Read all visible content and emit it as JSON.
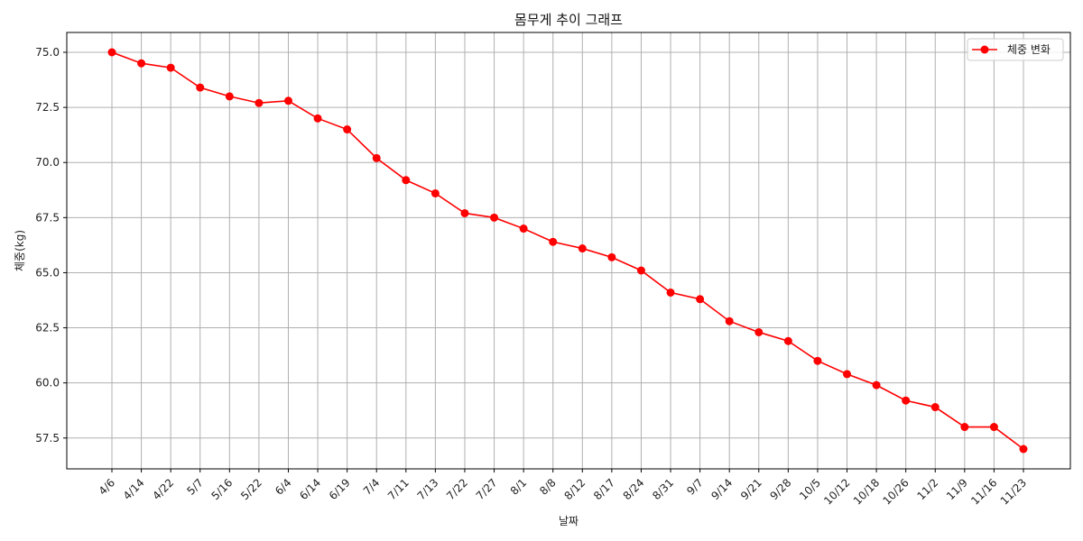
{
  "chart_data": {
    "type": "line",
    "title": "몸무게 추이 그래프",
    "xlabel": "날짜",
    "ylabel": "체중(kg)",
    "categories": [
      "4/6",
      "4/14",
      "4/22",
      "5/7",
      "5/16",
      "5/22",
      "6/4",
      "6/14",
      "6/19",
      "7/4",
      "7/11",
      "7/13",
      "7/22",
      "7/27",
      "8/1",
      "8/8",
      "8/12",
      "8/17",
      "8/24",
      "8/31",
      "9/7",
      "9/14",
      "9/21",
      "9/28",
      "10/5",
      "10/12",
      "10/18",
      "10/26",
      "11/2",
      "11/9",
      "11/16",
      "11/23"
    ],
    "series": [
      {
        "name": "체중 변화",
        "color": "#ff0000",
        "marker": "circle",
        "values": [
          75.0,
          74.5,
          74.3,
          73.4,
          73.0,
          72.7,
          72.8,
          72.0,
          71.5,
          70.2,
          69.2,
          68.6,
          67.7,
          67.5,
          67.0,
          66.4,
          66.1,
          65.7,
          65.1,
          64.1,
          63.8,
          62.8,
          62.3,
          61.9,
          61.0,
          60.4,
          59.9,
          59.2,
          58.9,
          58.0,
          58.0,
          57.0
        ]
      }
    ],
    "yticks": [
      "57.5",
      "60.0",
      "62.5",
      "65.0",
      "67.5",
      "70.0",
      "72.5",
      "75.0"
    ],
    "ylim": [
      56.1,
      75.9
    ],
    "grid": true,
    "legend_position": "top-right",
    "x_tick_rotation": 45
  }
}
